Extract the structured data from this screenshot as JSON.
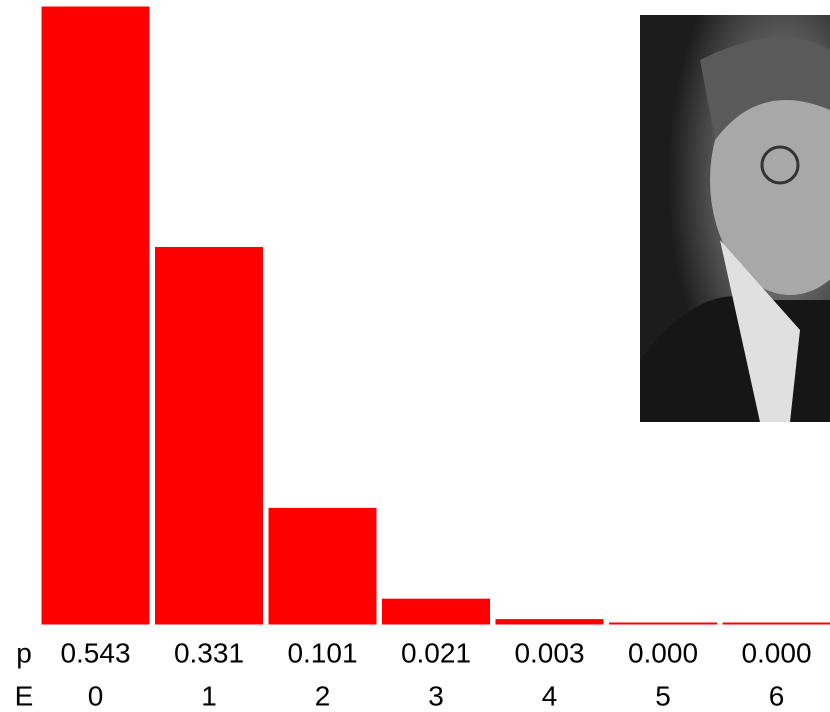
{
  "chart_data": {
    "type": "bar",
    "categories": [
      "0",
      "1",
      "2",
      "3",
      "4",
      "5",
      "6"
    ],
    "values": [
      0.543,
      0.331,
      0.101,
      0.021,
      0.003,
      0.0,
      0.0
    ],
    "value_labels": [
      "0.543",
      "0.331",
      "0.101",
      "0.021",
      "0.003",
      "0.000",
      "0.000"
    ],
    "value_row_label": "p",
    "category_row_label": "E",
    "color": "#ff0000"
  }
}
